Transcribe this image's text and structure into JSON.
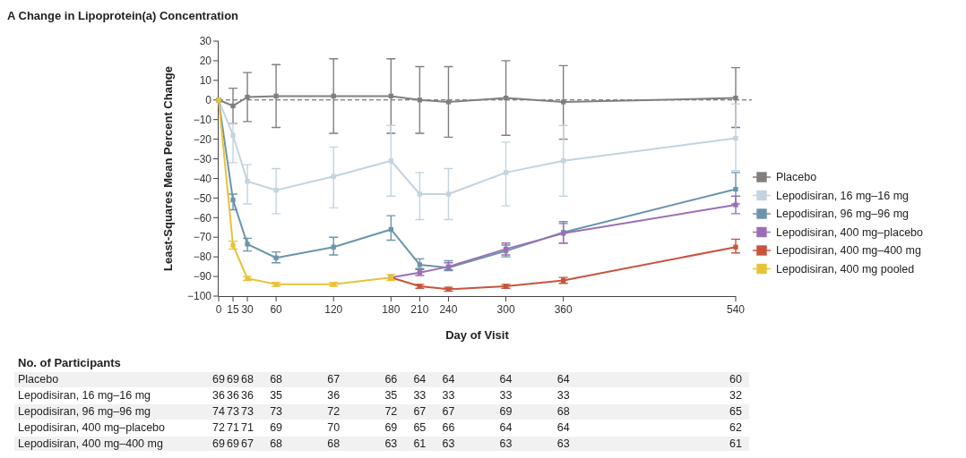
{
  "chart_data": {
    "type": "line",
    "title": "A Change in Lipoprotein(a) Concentration",
    "xlabel": "Day of Visit",
    "ylabel": "Least-Squares Mean Percent Change",
    "xlim": [
      0,
      540
    ],
    "xticks": [
      0,
      15,
      30,
      60,
      120,
      180,
      210,
      240,
      300,
      360,
      540
    ],
    "ylim": [
      -100,
      30
    ],
    "yticks": [
      30,
      20,
      10,
      0,
      -10,
      -20,
      -30,
      -40,
      -50,
      -60,
      -70,
      -80,
      -90,
      -100
    ],
    "grid": false,
    "legend": "right",
    "marker": "square",
    "line_style": "solid",
    "ref_lines": [
      {
        "axis": "y",
        "value": 0,
        "color": "#555555",
        "line_style": "dashed"
      }
    ],
    "series": [
      {
        "name": "Placebo",
        "color": "#7f7f7f",
        "x": [
          0,
          15,
          30,
          60,
          120,
          180,
          210,
          240,
          300,
          360,
          540
        ],
        "values": [
          0,
          -3,
          1.5,
          2,
          2,
          2,
          0,
          -1,
          1,
          -1,
          1
        ],
        "errors": [
          null,
          [
            -12,
            6
          ],
          [
            -11,
            14
          ],
          [
            -14,
            18
          ],
          [
            -17,
            21
          ],
          [
            -17,
            21
          ],
          [
            -17,
            17
          ],
          [
            -19,
            17
          ],
          [
            -18,
            20
          ],
          [
            -20,
            17.5
          ],
          [
            -14,
            16.5
          ]
        ]
      },
      {
        "name": "Lepodisiran, 16 mg–16 mg",
        "color": "#c3d3df",
        "x": [
          0,
          15,
          30,
          60,
          120,
          180,
          210,
          240,
          300,
          360,
          540
        ],
        "values": [
          0,
          -18,
          -41.5,
          -46,
          -39,
          -31,
          -48,
          -48,
          -37,
          -31,
          -19.5
        ],
        "errors": [
          null,
          [
            -32,
            -12
          ],
          [
            -53,
            -33
          ],
          [
            -58,
            -35
          ],
          [
            -55,
            -24
          ],
          [
            -49,
            -13
          ],
          [
            -61,
            -37
          ],
          [
            -61,
            -35
          ],
          [
            -54,
            -21.5
          ],
          [
            -49,
            -13
          ],
          [
            -36,
            -2
          ]
        ]
      },
      {
        "name": "Lepodisiran, 96 mg–96 mg",
        "color": "#6a95ab",
        "x": [
          0,
          15,
          30,
          60,
          120,
          180,
          210,
          240,
          300,
          360,
          540
        ],
        "values": [
          0,
          -51,
          -73.5,
          -80.5,
          -75,
          -66,
          -84,
          -85.5,
          -77,
          -67.5,
          -45.5
        ],
        "errors": [
          null,
          [
            -56,
            -48
          ],
          [
            -77,
            -70.5
          ],
          [
            -83,
            -77.5
          ],
          [
            -79,
            -70
          ],
          [
            -71.5,
            -59
          ],
          [
            -86,
            -81
          ],
          [
            -87,
            -82
          ],
          [
            -80,
            -74
          ],
          [
            -73,
            -62
          ],
          [
            -53,
            -37
          ]
        ]
      },
      {
        "name": "Lepodisiran, 400 mg–placebo",
        "color": "#9b6fb5",
        "x": [
          180,
          210,
          240,
          300,
          360,
          540
        ],
        "values": [
          -90.5,
          -88,
          -85,
          -76,
          -68,
          -53.5
        ],
        "errors": [
          null,
          [
            -89.5,
            -86.5
          ],
          [
            -86.5,
            -83
          ],
          [
            -79,
            -73
          ],
          [
            -73,
            -63
          ],
          [
            -58,
            -49
          ]
        ]
      },
      {
        "name": "Lepodisiran, 400 mg–400 mg",
        "color": "#c8543c",
        "x": [
          180,
          210,
          240,
          300,
          360,
          540
        ],
        "values": [
          -90.5,
          -95,
          -96.5,
          -95,
          -92,
          -75
        ],
        "errors": [
          null,
          [
            -96,
            -94
          ],
          [
            -97.5,
            -95.5
          ],
          [
            -96,
            -94
          ],
          [
            -93.5,
            -90.5
          ],
          [
            -78,
            -71
          ]
        ]
      },
      {
        "name": "Lepodisiran, 400 mg pooled",
        "color": "#e8c33a",
        "x": [
          0,
          15,
          30,
          60,
          120,
          180
        ],
        "values": [
          0,
          -74,
          -91,
          -94,
          -94,
          -90.5
        ],
        "errors": [
          null,
          [
            -76,
            -72
          ],
          [
            -92,
            -90
          ],
          [
            -95,
            -93
          ],
          [
            -95,
            -93
          ],
          [
            -92,
            -89
          ]
        ]
      }
    ],
    "annotations": [
      "No. of Participants",
      "Placebo",
      "69",
      "69",
      "68",
      "68",
      "67",
      "66",
      "64",
      "64",
      "64",
      "64",
      "60",
      "Lepodisiran, 16 mg–16 mg",
      "36",
      "36",
      "36",
      "35",
      "36",
      "35",
      "33",
      "33",
      "33",
      "33",
      "32",
      "Lepodisiran, 96 mg–96 mg",
      "74",
      "73",
      "73",
      "73",
      "72",
      "72",
      "67",
      "67",
      "69",
      "68",
      "65",
      "Lepodisiran, 400 mg–placebo",
      "72",
      "71",
      "71",
      "69",
      "70",
      "69",
      "65",
      "66",
      "64",
      "64",
      "62",
      "Lepodisiran, 400 mg–400 mg",
      "69",
      "69",
      "67",
      "68",
      "68",
      "63",
      "61",
      "63",
      "63",
      "63",
      "61"
    ]
  }
}
